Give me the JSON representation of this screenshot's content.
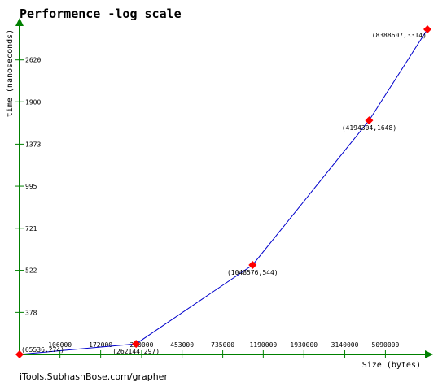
{
  "chart_data": {
    "type": "line",
    "title": "Performence -log scale",
    "xlabel": "Size (bytes)",
    "ylabel": "time (nanoseconds)",
    "x_scale": "log",
    "y_scale": "log",
    "x_ticks": [
      "106000",
      "172000",
      "280000",
      "453000",
      "735000",
      "1190000",
      "1930000",
      "3140000",
      "5090000"
    ],
    "y_ticks": [
      "378",
      "522",
      "721",
      "995",
      "1373",
      "1900",
      "2620"
    ],
    "xlim": [
      65536,
      8388607
    ],
    "ylim": [
      274,
      3314
    ],
    "points": [
      {
        "x": 65536,
        "y": 274,
        "label": "(65536,274)"
      },
      {
        "x": 262144,
        "y": 297,
        "label": "(262144,297)"
      },
      {
        "x": 1048576,
        "y": 544,
        "label": "(1048576,544)"
      },
      {
        "x": 4194304,
        "y": 1648,
        "label": "(4194304,1648)"
      },
      {
        "x": 8388607,
        "y": 3314,
        "label": "(8388607,3314)"
      }
    ],
    "colors": {
      "axis": "#008000",
      "line": "#0000cc",
      "marker": "#ff0000",
      "text": "#000000"
    },
    "grid": false
  },
  "footer": "iTools.SubhashBose.com/grapher"
}
